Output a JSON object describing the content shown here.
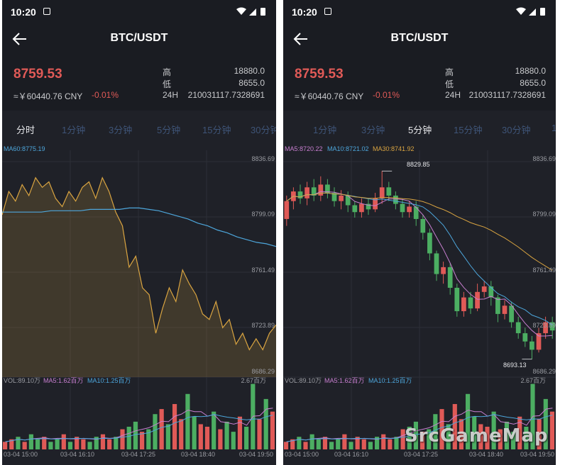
{
  "status_time": "10:20",
  "pair_title": "BTC/USDT",
  "price": "8759.53",
  "cny_price": "≈￥60440.76 CNY",
  "change": "-0.01%",
  "stats": {
    "high_label": "高",
    "high_value": "18880.0",
    "low_label": "低",
    "low_value": "8655.0",
    "vol_label": "24H",
    "vol_value": "210031117.7328691"
  },
  "colors": {
    "up": "#e05a57",
    "down": "#4cae62",
    "price_line": "#d9a441",
    "ma60": "#4da6db",
    "ma5": "#c87fd0",
    "ma10": "#4da6db",
    "ma30": "#d9a441",
    "inactive_tab": "#3e5477"
  },
  "left": {
    "tabs": [
      "分时",
      "1分钟",
      "3分钟",
      "5分钟",
      "15分钟",
      "30分钟"
    ],
    "active_tab": "分时",
    "ma_legend": "MA60:8775.19",
    "y_labels": [
      "8836.69",
      "8799.09",
      "8761.49",
      "8723.89",
      "8686.29"
    ],
    "vol_legend": {
      "vol": "VOL:89.10万",
      "ma5": "MA5:1.62百万",
      "ma10": "MA10:1.25百万",
      "max": "2.67百万"
    },
    "dates": [
      "03-04 15:00",
      "03-04 16:10",
      "03-04 17:25",
      "03-04 18:40",
      "03-04 19:50"
    ]
  },
  "right": {
    "tabs": [
      "1分钟",
      "3分钟",
      "5分钟",
      "15分钟",
      "30分钟",
      "1"
    ],
    "active_tab": "5分钟",
    "ma_legend": {
      "ma5": "MA5:8720.22",
      "ma10": "MA10:8721.02",
      "ma30": "MA30:8741.92"
    },
    "y_labels": [
      "8836.69",
      "8799.09",
      "8761.49",
      "8723.89",
      "8686.29"
    ],
    "high_marker": "8829.85",
    "low_marker": "8693.13",
    "vol_legend": {
      "vol": "VOL:89.10万",
      "ma5": "MA5:1.62百万",
      "ma10": "MA10:1.25百万",
      "max": "2.67百万"
    },
    "dates": [
      "03-04 15:00",
      "03-04 16:10",
      "03-04 17:25",
      "03-04 18:40",
      "03-04 19:50"
    ]
  },
  "watermark": "SrcGameMap",
  "chart_data": [
    {
      "type": "area",
      "ylim": [
        8686.29,
        8836.69
      ],
      "series": [
        {
          "name": "MA60",
          "values": [
            8800,
            8800,
            8800,
            8800,
            8800,
            8801,
            8801,
            8801,
            8801,
            8802,
            8802,
            8802,
            8802,
            8803,
            8803,
            8802,
            8801,
            8799,
            8797,
            8795,
            8792,
            8790,
            8787,
            8785,
            8782,
            8780,
            8778,
            8777,
            8775
          ]
        },
        {
          "values": [
            8798,
            8815,
            8808,
            8820,
            8812,
            8825,
            8818,
            8822,
            8810,
            8804,
            8815,
            8808,
            8818,
            8822,
            8810,
            8825,
            8815,
            8800,
            8790,
            8760,
            8768,
            8745,
            8740,
            8712,
            8730,
            8745,
            8735,
            8758,
            8748,
            8740,
            8726,
            8722,
            8735,
            8716,
            8722,
            8704,
            8712,
            8700,
            8708,
            8700,
            8712,
            8718
          ]
        }
      ]
    },
    {
      "type": "bar",
      "name": "volume-left",
      "values": [
        0.3,
        0.4,
        0.5,
        0.3,
        0.6,
        0.4,
        0.5,
        0.3,
        0.4,
        0.6,
        0.3,
        0.5,
        0.4,
        0.3,
        0.5,
        0.6,
        0.4,
        0.5,
        0.8,
        0.9,
        1.1,
        0.7,
        0.8,
        1.4,
        1.6,
        1.0,
        1.8,
        1.2,
        2.2,
        1.3,
        1.0,
        0.9,
        1.5,
        0.8,
        1.1,
        0.7,
        1.3,
        0.9,
        2.6,
        1.2,
        2.0,
        1.5
      ]
    },
    {
      "type": "candlestick",
      "ylim": [
        8686.29,
        8836.69
      ],
      "candles": [
        [
          8795,
          8808,
          8790,
          8812
        ],
        [
          8808,
          8815,
          8802,
          8818
        ],
        [
          8815,
          8810,
          8806,
          8820
        ],
        [
          8810,
          8818,
          8805,
          8822
        ],
        [
          8818,
          8812,
          8808,
          8824
        ],
        [
          8812,
          8820,
          8808,
          8826
        ],
        [
          8820,
          8814,
          8810,
          8824
        ],
        [
          8814,
          8808,
          8804,
          8818
        ],
        [
          8808,
          8812,
          8802,
          8816
        ],
        [
          8812,
          8805,
          8800,
          8815
        ],
        [
          8805,
          8800,
          8796,
          8808
        ],
        [
          8800,
          8806,
          8796,
          8810
        ],
        [
          8806,
          8802,
          8798,
          8810
        ],
        [
          8802,
          8810,
          8800,
          8814
        ],
        [
          8810,
          8818,
          8806,
          8829.85
        ],
        [
          8818,
          8812,
          8808,
          8822
        ],
        [
          8812,
          8806,
          8802,
          8815
        ],
        [
          8806,
          8800,
          8796,
          8810
        ],
        [
          8800,
          8804,
          8796,
          8808
        ],
        [
          8804,
          8795,
          8790,
          8808
        ],
        [
          8795,
          8785,
          8780,
          8798
        ],
        [
          8785,
          8770,
          8765,
          8788
        ],
        [
          8770,
          8755,
          8750,
          8772
        ],
        [
          8755,
          8760,
          8748,
          8764
        ],
        [
          8760,
          8745,
          8740,
          8763
        ],
        [
          8745,
          8728,
          8724,
          8748
        ],
        [
          8728,
          8738,
          8724,
          8742
        ],
        [
          8738,
          8730,
          8726,
          8742
        ],
        [
          8730,
          8742,
          8728,
          8748
        ],
        [
          8742,
          8746,
          8738,
          8750
        ],
        [
          8746,
          8738,
          8732,
          8750
        ],
        [
          8738,
          8726,
          8720,
          8740
        ],
        [
          8726,
          8732,
          8722,
          8736
        ],
        [
          8732,
          8720,
          8716,
          8735
        ],
        [
          8720,
          8712,
          8708,
          8724
        ],
        [
          8712,
          8706,
          8702,
          8716
        ],
        [
          8706,
          8700,
          8693.13,
          8710
        ],
        [
          8700,
          8712,
          8698,
          8716
        ],
        [
          8712,
          8720,
          8708,
          8724
        ],
        [
          8720,
          8714,
          8708,
          8724
        ]
      ]
    }
  ]
}
